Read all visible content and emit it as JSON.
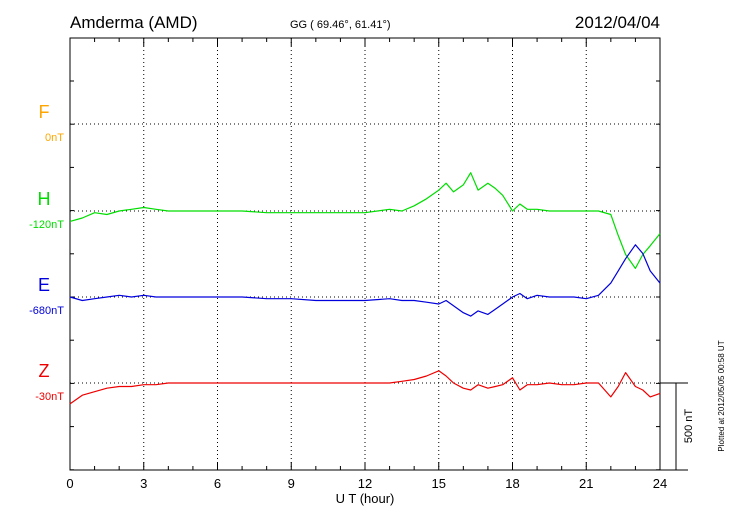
{
  "header": {
    "station": "Amderma (AMD)",
    "coords": "GG ( 69.46°,  61.41°)",
    "date": "2012/04/04"
  },
  "footnote": "Plotted at 2012/05/05 00:58 UT",
  "scale_bar": {
    "label": "500 nT",
    "value_nT": 500
  },
  "chart_data": {
    "type": "line",
    "title": "Amderma (AMD)",
    "xlabel": "U T (hour)",
    "ylabel": "",
    "xlim": [
      0,
      24
    ],
    "x_ticks": [
      "0",
      "3",
      "6",
      "9",
      "12",
      "15",
      "18",
      "21",
      "24"
    ],
    "grid": true,
    "series": [
      {
        "name": "F",
        "baseline": "0nT",
        "color": "#ffa500",
        "x": [],
        "values": []
      },
      {
        "name": "H",
        "baseline": "-120nT",
        "color": "#00dd00",
        "x": [
          0,
          0.5,
          1,
          1.5,
          2,
          2.5,
          3,
          3.5,
          4,
          5,
          6,
          7,
          8,
          9,
          10,
          11,
          12,
          13,
          13.5,
          14,
          14.5,
          15,
          15.3,
          15.6,
          16,
          16.3,
          16.6,
          17,
          17.3,
          17.6,
          18,
          18.3,
          18.6,
          19,
          19.5,
          20,
          20.5,
          21,
          21.5,
          22,
          22.3,
          22.6,
          23,
          23.3,
          23.6,
          24
        ],
        "values": [
          -60,
          -40,
          -10,
          -20,
          0,
          10,
          20,
          10,
          0,
          0,
          0,
          0,
          -10,
          -10,
          -10,
          -10,
          -10,
          10,
          0,
          30,
          70,
          120,
          160,
          110,
          150,
          220,
          120,
          160,
          130,
          90,
          0,
          40,
          10,
          10,
          0,
          0,
          0,
          0,
          0,
          -20,
          -140,
          -250,
          -330,
          -250,
          -200,
          -130
        ]
      },
      {
        "name": "E",
        "baseline": "-680nT",
        "color": "#0000dd",
        "x": [
          0,
          0.5,
          1,
          1.5,
          2,
          2.5,
          3,
          3.5,
          4,
          5,
          6,
          7,
          8,
          9,
          10,
          11,
          12,
          13,
          13.5,
          14,
          14.5,
          15,
          15.3,
          15.6,
          16,
          16.3,
          16.6,
          17,
          17.3,
          17.6,
          18,
          18.3,
          18.6,
          19,
          19.5,
          20,
          20.5,
          21,
          21.5,
          22,
          22.3,
          22.6,
          23,
          23.3,
          23.6,
          24
        ],
        "values": [
          0,
          -20,
          -10,
          0,
          10,
          0,
          10,
          0,
          0,
          0,
          0,
          0,
          -10,
          -10,
          -20,
          -20,
          -20,
          -10,
          -20,
          -20,
          -30,
          -40,
          -20,
          -50,
          -90,
          -110,
          -80,
          -100,
          -70,
          -40,
          0,
          20,
          -10,
          10,
          0,
          0,
          0,
          -10,
          10,
          80,
          150,
          220,
          300,
          250,
          150,
          80
        ]
      },
      {
        "name": "Z",
        "baseline": "-30nT",
        "color": "#ee0000",
        "x": [
          0,
          0.5,
          1,
          1.5,
          2,
          2.5,
          3,
          3.5,
          4,
          5,
          6,
          7,
          8,
          9,
          10,
          11,
          12,
          13,
          13.5,
          14,
          14.5,
          15,
          15.3,
          15.6,
          16,
          16.3,
          16.6,
          17,
          17.3,
          17.6,
          18,
          18.3,
          18.6,
          19,
          19.5,
          20,
          20.5,
          21,
          21.5,
          22,
          22.3,
          22.6,
          23,
          23.3,
          23.6,
          24
        ],
        "values": [
          -120,
          -70,
          -50,
          -30,
          -20,
          -20,
          -10,
          -10,
          0,
          0,
          0,
          0,
          0,
          0,
          0,
          0,
          0,
          0,
          10,
          20,
          40,
          70,
          40,
          0,
          -30,
          -40,
          -10,
          -30,
          -20,
          -10,
          30,
          -40,
          -10,
          -10,
          0,
          -10,
          -10,
          0,
          0,
          -80,
          -20,
          60,
          -20,
          -40,
          -80,
          -60
        ]
      }
    ]
  }
}
